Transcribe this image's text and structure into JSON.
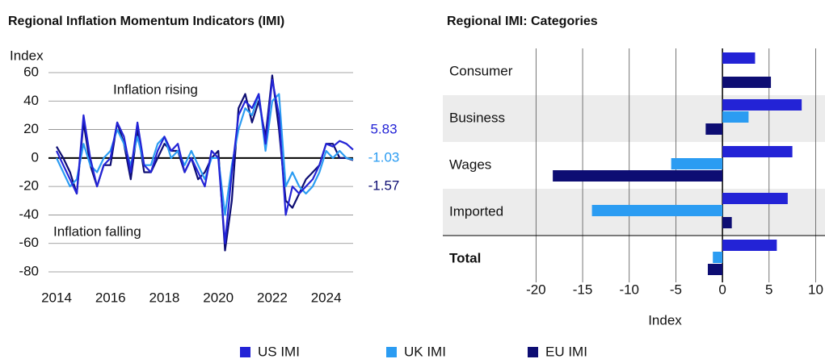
{
  "chart_data": [
    {
      "type": "line",
      "title": "Regional Inflation Momentum Indicators (IMI)",
      "ylabel": "Index",
      "annotations": [
        "Inflation rising",
        "Inflation falling"
      ],
      "x": [
        2014,
        2014.25,
        2014.5,
        2014.75,
        2015,
        2015.25,
        2015.5,
        2015.75,
        2016,
        2016.25,
        2016.5,
        2016.75,
        2017,
        2017.25,
        2017.5,
        2017.75,
        2018,
        2018.25,
        2018.5,
        2018.75,
        2019,
        2019.25,
        2019.5,
        2019.75,
        2020,
        2020.25,
        2020.5,
        2020.75,
        2021,
        2021.25,
        2021.5,
        2021.75,
        2022,
        2022.25,
        2022.5,
        2022.75,
        2023,
        2023.25,
        2023.5,
        2023.75,
        2024,
        2024.25,
        2024.5,
        2024.75,
        2025
      ],
      "series": [
        {
          "name": "US IMI",
          "color": "#2323d6",
          "values": [
            5,
            -5,
            -15,
            -25,
            30,
            0,
            -20,
            -5,
            0,
            25,
            15,
            -10,
            25,
            -5,
            -10,
            5,
            15,
            5,
            10,
            -10,
            0,
            -10,
            -20,
            5,
            0,
            -60,
            -10,
            30,
            40,
            35,
            45,
            10,
            55,
            30,
            -40,
            -20,
            -25,
            -20,
            -15,
            -5,
            10,
            8,
            12,
            10,
            5.83
          ]
        },
        {
          "name": "UK IMI",
          "color": "#2b9cf2",
          "values": [
            0,
            -10,
            -20,
            -15,
            10,
            -5,
            -10,
            0,
            5,
            20,
            10,
            -5,
            15,
            -5,
            -5,
            10,
            15,
            0,
            5,
            -5,
            5,
            -5,
            -15,
            0,
            0,
            -40,
            -5,
            20,
            35,
            30,
            45,
            5,
            40,
            45,
            -20,
            -10,
            -20,
            -25,
            -20,
            -10,
            5,
            0,
            5,
            0,
            -1.03
          ]
        },
        {
          "name": "EU IMI",
          "color": "#0d0d73",
          "values": [
            8,
            0,
            -10,
            -25,
            25,
            -5,
            -20,
            -5,
            -5,
            25,
            10,
            -15,
            20,
            -10,
            -10,
            0,
            10,
            5,
            5,
            -10,
            0,
            -15,
            -10,
            0,
            5,
            -65,
            -30,
            35,
            45,
            25,
            40,
            15,
            58,
            20,
            -30,
            -35,
            -25,
            -15,
            -10,
            -5,
            10,
            10,
            0,
            0,
            -1.57
          ]
        }
      ],
      "xlim": [
        2013.7,
        2025
      ],
      "xticks": [
        2014,
        2016,
        2018,
        2020,
        2022,
        2024
      ],
      "ylim": [
        -80,
        60
      ],
      "yticks": [
        -80,
        -60,
        -40,
        -20,
        0,
        20,
        40,
        60
      ],
      "grid": true
    },
    {
      "type": "bar",
      "orientation": "horizontal",
      "title": "Regional IMI: Categories",
      "xlabel": "Index",
      "categories": [
        "Consumer",
        "Business",
        "Wages",
        "Imported",
        "Total"
      ],
      "series": [
        {
          "name": "US IMI",
          "color": "#2323d6",
          "values": [
            3.5,
            8.5,
            7.5,
            7,
            5.83
          ]
        },
        {
          "name": "UK IMI",
          "color": "#2b9cf2",
          "values": [
            0,
            2.8,
            -5.5,
            -14,
            -1.03
          ]
        },
        {
          "name": "EU IMI",
          "color": "#0d0d73",
          "values": [
            5.2,
            -1.8,
            -18.2,
            1,
            -1.57
          ]
        }
      ],
      "xlim": [
        -30,
        11
      ],
      "xticks": [
        -20,
        -15,
        -10,
        -5,
        0,
        5,
        10
      ],
      "grid": true
    }
  ]
}
